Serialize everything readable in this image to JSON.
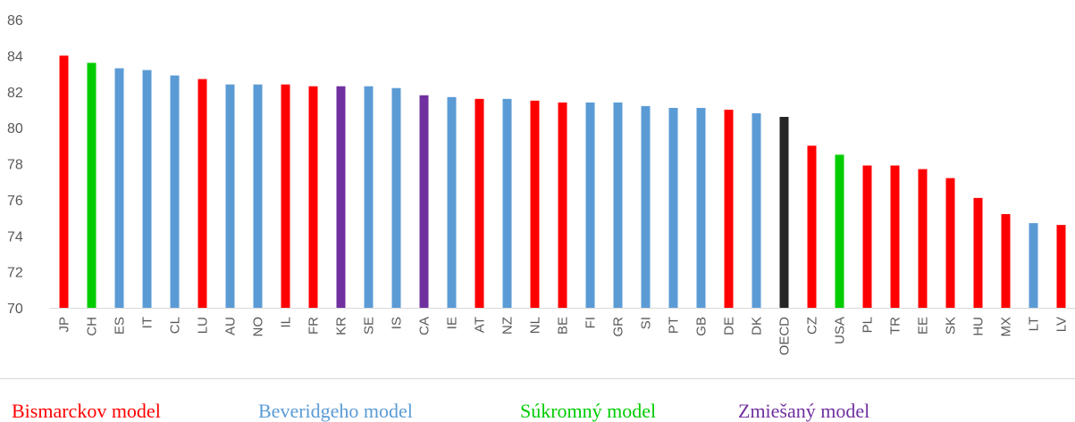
{
  "chart_data": {
    "type": "bar",
    "categories": [
      "JP",
      "CH",
      "ES",
      "IT",
      "CL",
      "LU",
      "AU",
      "NO",
      "IL",
      "FR",
      "KR",
      "SE",
      "IS",
      "CA",
      "IE",
      "AT",
      "NZ",
      "NL",
      "BE",
      "FI",
      "GR",
      "SI",
      "PT",
      "GB",
      "DE",
      "DK",
      "OECD",
      "CZ",
      "USA",
      "PL",
      "TR",
      "EE",
      "SK",
      "HU",
      "MX",
      "LT",
      "LV"
    ],
    "values": [
      84.0,
      83.6,
      83.3,
      83.2,
      82.9,
      82.7,
      82.4,
      82.4,
      82.4,
      82.3,
      82.3,
      82.3,
      82.2,
      81.8,
      81.7,
      81.6,
      81.6,
      81.5,
      81.4,
      81.4,
      81.4,
      81.2,
      81.1,
      81.1,
      81.0,
      80.8,
      80.6,
      79.0,
      78.5,
      77.9,
      77.9,
      77.7,
      77.2,
      76.1,
      75.2,
      74.7,
      74.6
    ],
    "model": [
      "bismarck",
      "private",
      "beveridge",
      "beveridge",
      "beveridge",
      "bismarck",
      "beveridge",
      "beveridge",
      "bismarck",
      "bismarck",
      "mixed",
      "beveridge",
      "beveridge",
      "mixed",
      "beveridge",
      "bismarck",
      "beveridge",
      "bismarck",
      "bismarck",
      "beveridge",
      "beveridge",
      "beveridge",
      "beveridge",
      "beveridge",
      "bismarck",
      "beveridge",
      "oecd",
      "bismarck",
      "private",
      "bismarck",
      "bismarck",
      "bismarck",
      "bismarck",
      "bismarck",
      "bismarck",
      "beveridge",
      "bismarck"
    ],
    "colors": {
      "bismarck": "#ff0000",
      "beveridge": "#5b9bd5",
      "private": "#00cc00",
      "mixed": "#7030a0",
      "oecd": "#262626"
    },
    "ylim": [
      70,
      86
    ],
    "yticks": [
      70,
      72,
      74,
      76,
      78,
      80,
      82,
      84,
      86
    ],
    "grid": false,
    "legend_position": "bottom",
    "legend": [
      {
        "label": "Bismarckov model",
        "model": "bismarck"
      },
      {
        "label": "Beveridgeho model",
        "model": "beveridge"
      },
      {
        "label": "Súkromný model",
        "model": "private"
      },
      {
        "label": "Zmiešaný model",
        "model": "mixed"
      }
    ]
  }
}
